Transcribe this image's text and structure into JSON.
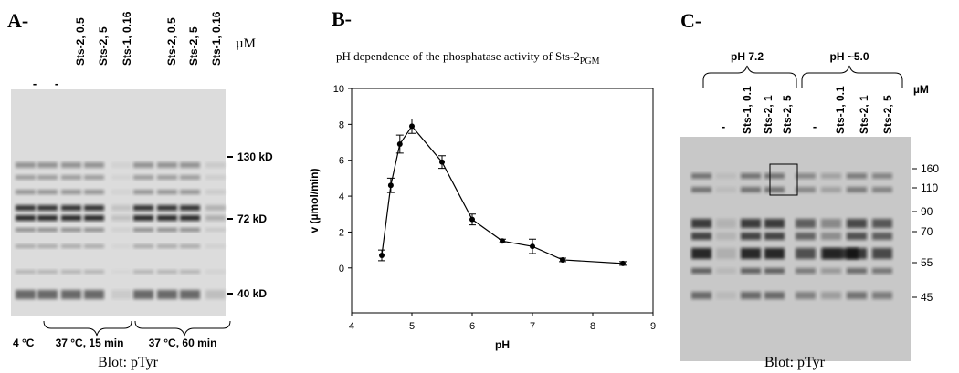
{
  "panel_a": {
    "label": "A-",
    "unit": "µM",
    "lanes": [
      "-",
      "-",
      "Sts-2,  0.5",
      "Sts-2,  5",
      "Sts-1, 0.16",
      "Sts-2,  0.5",
      "Sts-2,  5",
      "Sts-1, 0.16"
    ],
    "markers": [
      "130 kD",
      "72 kD",
      "40 kD"
    ],
    "conditions": [
      "4 °C",
      "37 °C, 15 min",
      "37 °C, 60 min"
    ],
    "caption": "Blot:  pTyr"
  },
  "chart_data": {
    "type": "line",
    "panel_label": "B-",
    "title": "pH dependence of the phosphatase activity of Sts-2",
    "title_subscript": "PGM",
    "x_label": "pH",
    "y_label": "v (µmol/min)",
    "x": [
      4.5,
      4.65,
      4.8,
      5.0,
      5.5,
      6.0,
      6.5,
      7.0,
      7.5,
      8.5
    ],
    "values": [
      0.7,
      4.6,
      6.9,
      7.9,
      5.9,
      2.7,
      1.5,
      1.2,
      0.45,
      0.25
    ],
    "errors": [
      0.3,
      0.4,
      0.5,
      0.4,
      0.35,
      0.3,
      0.1,
      0.4,
      0.1,
      0.1
    ],
    "color": "#000000",
    "xlim": [
      4,
      9
    ],
    "xticks": [
      4,
      5,
      6,
      7,
      8,
      9
    ],
    "ylim": [
      -2.5,
      10
    ],
    "yticks": [
      0,
      2,
      4,
      6,
      8,
      10
    ]
  },
  "panel_c": {
    "label": "C-",
    "unit": "µM",
    "groups": [
      "pH 7.2",
      "pH ~5.0"
    ],
    "lanes": [
      "-",
      "Sts-1, 0.1",
      "Sts-2, 1",
      "Sts-2, 5",
      "-",
      "Sts-1, 0.1",
      "Sts-2, 1",
      "Sts-2, 5"
    ],
    "markers": [
      "160",
      "110",
      "90",
      "70",
      "55",
      "45"
    ],
    "caption": "Blot:  pTyr"
  }
}
